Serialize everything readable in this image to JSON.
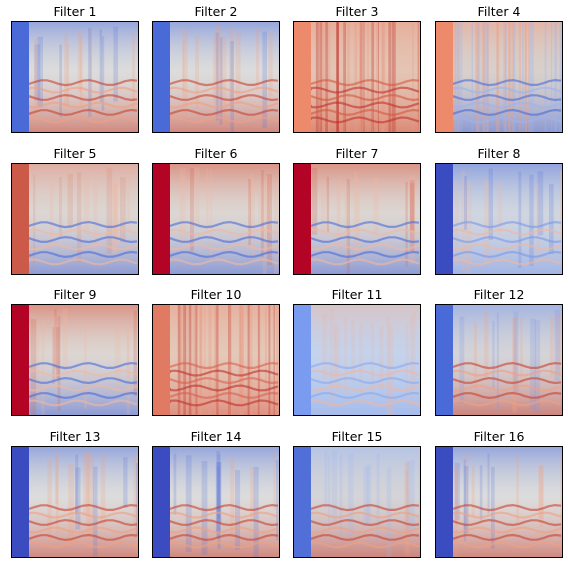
{
  "chart_data": {
    "type": "heatmap",
    "colormap": "coolwarm",
    "grid": "4x4",
    "axes_ticks": "none",
    "panels": [
      {
        "title": "Filter 1",
        "background": "#dcdcdc",
        "left_band": "#4a6ad8",
        "upper_tone": "#5a78dc",
        "lower_tone": "#c8412f",
        "stripe_tone": "#f0a080",
        "contrast": "high"
      },
      {
        "title": "Filter 2",
        "background": "#dcdcdc",
        "left_band": "#4a6ad8",
        "upper_tone": "#5a78dc",
        "lower_tone": "#c8412f",
        "stripe_tone": "#f0a080",
        "contrast": "high"
      },
      {
        "title": "Filter 3",
        "background": "#e4c4b4",
        "left_band": "#ee8a6c",
        "upper_tone": "#e89b86",
        "lower_tone": "#d45840",
        "stripe_tone": "#c03028",
        "contrast": "noisy"
      },
      {
        "title": "Filter 4",
        "background": "#d8d0cc",
        "left_band": "#ee8a6c",
        "upper_tone": "#eaa088",
        "lower_tone": "#4a6ad8",
        "stripe_tone": "#9ab4f0",
        "contrast": "noisy"
      },
      {
        "title": "Filter 5",
        "background": "#dcd6d2",
        "left_band": "#cc5a48",
        "upper_tone": "#e08a78",
        "lower_tone": "#4a6ad8",
        "stripe_tone": "#f2b8a0",
        "contrast": "medium"
      },
      {
        "title": "Filter 6",
        "background": "#dcd6d2",
        "left_band": "#b40426",
        "upper_tone": "#d85a44",
        "lower_tone": "#4a6ad8",
        "stripe_tone": "#f2b8a0",
        "contrast": "high"
      },
      {
        "title": "Filter 7",
        "background": "#dcd6d2",
        "left_band": "#b40426",
        "upper_tone": "#d85a44",
        "lower_tone": "#4a6ad8",
        "stripe_tone": "#f2b8a0",
        "contrast": "high"
      },
      {
        "title": "Filter 8",
        "background": "#d0d6e0",
        "left_band": "#3b4cc0",
        "upper_tone": "#5a78dc",
        "lower_tone": "#7a98e8",
        "stripe_tone": "#f0b8a0",
        "contrast": "medium"
      },
      {
        "title": "Filter 9",
        "background": "#dcd6d2",
        "left_band": "#b40426",
        "upper_tone": "#d85a44",
        "lower_tone": "#4a6ad8",
        "stripe_tone": "#f2b8a0",
        "contrast": "high"
      },
      {
        "title": "Filter 10",
        "background": "#e4c8b8",
        "left_band": "#e07a62",
        "upper_tone": "#e89b86",
        "lower_tone": "#d86050",
        "stripe_tone": "#c03028",
        "contrast": "noisy"
      },
      {
        "title": "Filter 11",
        "background": "#c4d2ec",
        "left_band": "#7a9cf0",
        "upper_tone": "#e8b8a4",
        "lower_tone": "#8aa8ec",
        "stripe_tone": "#f0b8a0",
        "contrast": "low"
      },
      {
        "title": "Filter 12",
        "background": "#d4d4d8",
        "left_band": "#4a6ad8",
        "upper_tone": "#7a98e8",
        "lower_tone": "#c8412f",
        "stripe_tone": "#f0a080",
        "contrast": "medium"
      },
      {
        "title": "Filter 13",
        "background": "#dcdcdc",
        "left_band": "#3b4cc0",
        "upper_tone": "#5a78dc",
        "lower_tone": "#c8412f",
        "stripe_tone": "#f0a080",
        "contrast": "high"
      },
      {
        "title": "Filter 14",
        "background": "#dcdcdc",
        "left_band": "#3b4cc0",
        "upper_tone": "#5a78dc",
        "lower_tone": "#c8412f",
        "stripe_tone": "#f0a080",
        "contrast": "high"
      },
      {
        "title": "Filter 15",
        "background": "#d4d4d8",
        "left_band": "#5070d8",
        "upper_tone": "#9ab4f0",
        "lower_tone": "#c8412f",
        "stripe_tone": "#f0a080",
        "contrast": "medium"
      },
      {
        "title": "Filter 16",
        "background": "#dcdcdc",
        "left_band": "#3b4cc0",
        "upper_tone": "#5a78dc",
        "lower_tone": "#c8412f",
        "stripe_tone": "#f0a080",
        "contrast": "high"
      }
    ]
  }
}
